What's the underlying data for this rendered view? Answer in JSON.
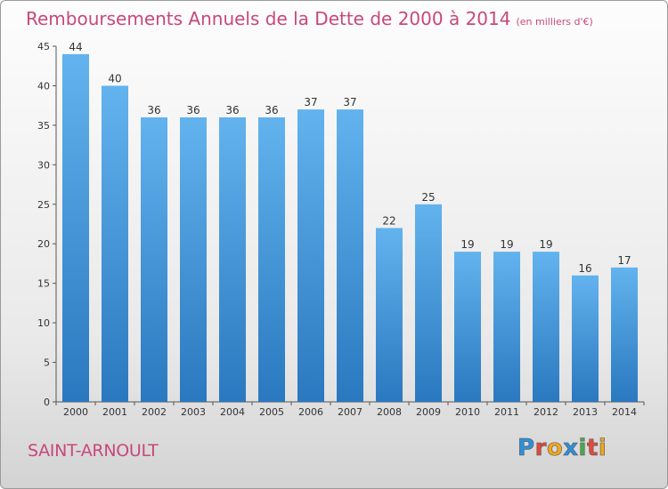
{
  "chart_data": {
    "type": "bar",
    "title": "Remboursements Annuels de la Dette de 2000 à 2014",
    "subtitle": "(en milliers d'€)",
    "categories": [
      "2000",
      "2001",
      "2002",
      "2003",
      "2004",
      "2005",
      "2006",
      "2007",
      "2008",
      "2009",
      "2010",
      "2011",
      "2012",
      "2013",
      "2014"
    ],
    "values": [
      44,
      40,
      36,
      36,
      36,
      36,
      37,
      37,
      22,
      25,
      19,
      19,
      19,
      16,
      17
    ],
    "ylim": [
      0,
      45
    ],
    "yticks": [
      0,
      5,
      10,
      15,
      20,
      25,
      30,
      35,
      40,
      45
    ],
    "grid": false,
    "bar_color": "#4f9fdf"
  },
  "footer": {
    "commune": "SAINT-ARNOULT",
    "logo_letters": [
      "P",
      "r",
      "o",
      "x",
      "i",
      "t",
      "i"
    ],
    "logo_colors": [
      "#2f8fd8",
      "#e04a3c",
      "#f2a51c",
      "#2f8fd8",
      "#4aa84a",
      "#e04a3c",
      "#f2a51c"
    ]
  }
}
